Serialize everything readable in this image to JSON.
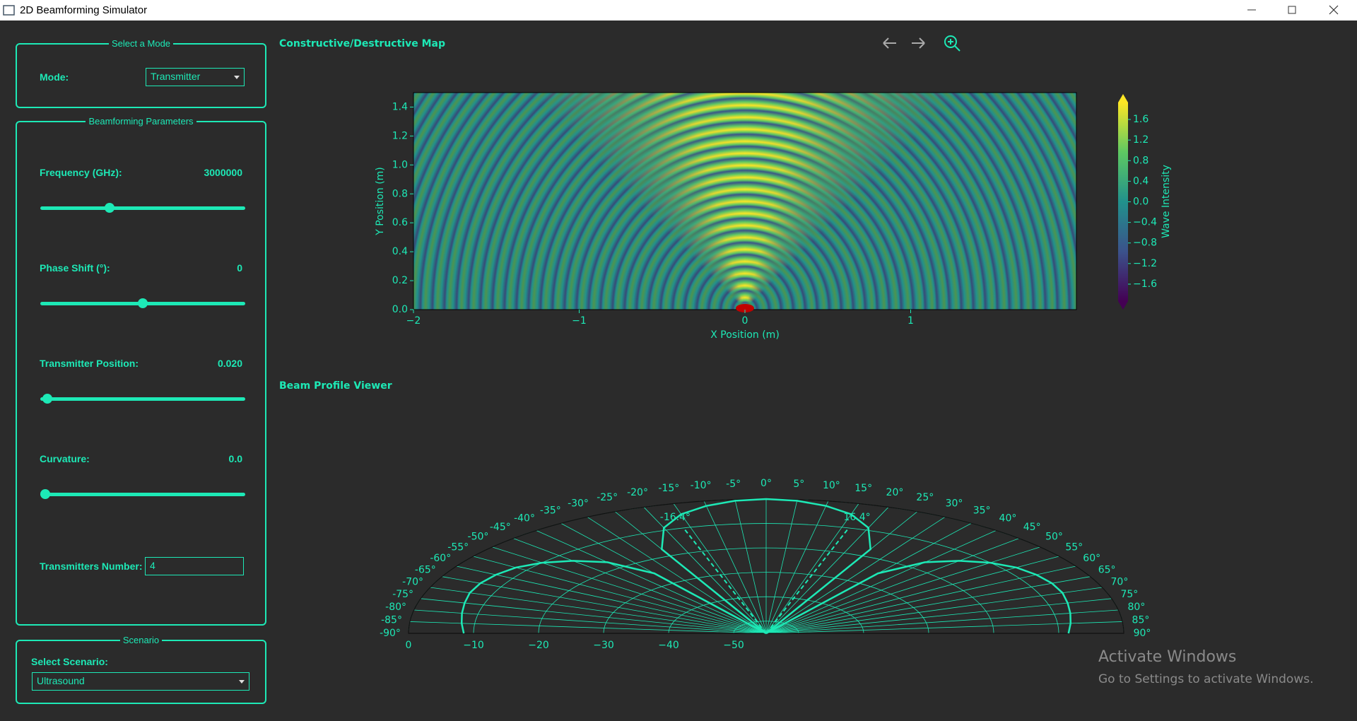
{
  "window": {
    "title": "2D Beamforming Simulator"
  },
  "mode_panel": {
    "title": "Select a Mode",
    "label": "Mode:",
    "selected": "Transmitter"
  },
  "parameters_panel": {
    "title": "Beamforming Parameters",
    "parameters": [
      {
        "label": "Frequency (GHz):",
        "value": "3000000"
      },
      {
        "label": "Phase Shift (°):",
        "value": "0"
      },
      {
        "label": "Transmitter Position:",
        "value": "0.020"
      },
      {
        "label": "Curvature:",
        "value": "0.0"
      }
    ],
    "transmitters_label": "Transmitters Number:",
    "transmitters_value": "4"
  },
  "scenario_panel": {
    "title": "Scenario",
    "label": "Select Scenario:",
    "selected": "Ultrasound"
  },
  "watermark": {
    "title": "Activate Windows",
    "subtitle": "Go to Settings to activate Windows."
  },
  "chart_data": [
    {
      "type": "heatmap",
      "title": "Constructive/Destructive Map",
      "xlabel": "X Position (m)",
      "ylabel": "Y Position (m)",
      "xlim": [
        -2,
        2
      ],
      "ylim": [
        0,
        1.5
      ],
      "xticks": [
        {
          "value": -2,
          "label": "−2"
        },
        {
          "value": -1,
          "label": "−1"
        },
        0,
        1
      ],
      "yticks": [
        {
          "value": 0,
          "label": "0.0"
        },
        0.2,
        0.4,
        0.6,
        0.8,
        {
          "value": 1,
          "label": "1.0"
        },
        1.2,
        1.4
      ],
      "colormap": "viridis",
      "colorbar": {
        "label": "Wave Intensity",
        "lim": [
          -1.93,
          1.93
        ],
        "ticks": [
          1.6,
          1.2,
          0.8,
          0.4,
          {
            "value": 0,
            "label": "0.0"
          },
          {
            "value": -0.4,
            "label": "−0.4"
          },
          {
            "value": -0.8,
            "label": "−0.8"
          },
          {
            "value": -1.2,
            "label": "−1.2"
          },
          {
            "value": -1.6,
            "label": "−1.6"
          }
        ]
      }
    },
    {
      "type": "polar",
      "title": "Beam Profile Viewer",
      "color": "#1de9b6",
      "thetalim": [
        -90,
        90
      ],
      "rlim": [
        -55,
        0
      ],
      "thetaticks": [
        {
          "value": -90,
          "label": "-90°"
        },
        {
          "value": -85,
          "label": "-85°"
        },
        {
          "value": -80,
          "label": "-80°"
        },
        {
          "value": -75,
          "label": "-75°"
        },
        {
          "value": -70,
          "label": "-70°"
        },
        {
          "value": -65,
          "label": "-65°"
        },
        {
          "value": -60,
          "label": "-60°"
        },
        {
          "value": -55,
          "label": "-55°"
        },
        {
          "value": -50,
          "label": "-50°"
        },
        {
          "value": -45,
          "label": "-45°"
        },
        {
          "value": -40,
          "label": "-40°"
        },
        {
          "value": -35,
          "label": "-35°"
        },
        {
          "value": -30,
          "label": "-30°"
        },
        {
          "value": -25,
          "label": "-25°"
        },
        {
          "value": -20,
          "label": "-20°"
        },
        {
          "value": -15,
          "label": "-15°"
        },
        {
          "value": -10,
          "label": "-10°"
        },
        {
          "value": -5,
          "label": "-5°"
        },
        {
          "value": 0,
          "label": "0°"
        },
        {
          "value": 5,
          "label": "5°"
        },
        {
          "value": 10,
          "label": "10°"
        },
        {
          "value": 15,
          "label": "15°"
        },
        {
          "value": 20,
          "label": "20°"
        },
        {
          "value": 25,
          "label": "25°"
        },
        {
          "value": 30,
          "label": "30°"
        },
        {
          "value": 35,
          "label": "35°"
        },
        {
          "value": 40,
          "label": "40°"
        },
        {
          "value": 45,
          "label": "45°"
        },
        {
          "value": 50,
          "label": "50°"
        },
        {
          "value": 55,
          "label": "55°"
        },
        {
          "value": 60,
          "label": "60°"
        },
        {
          "value": 65,
          "label": "65°"
        },
        {
          "value": 70,
          "label": "70°"
        },
        {
          "value": 75,
          "label": "75°"
        },
        {
          "value": 80,
          "label": "80°"
        },
        {
          "value": 85,
          "label": "85°"
        },
        {
          "value": 90,
          "label": "90°"
        }
      ],
      "rticks": [
        0,
        {
          "value": -10,
          "label": "−10"
        },
        {
          "value": -20,
          "label": "−20"
        },
        {
          "value": -30,
          "label": "−30"
        },
        {
          "value": -40,
          "label": "−40"
        },
        {
          "value": -50,
          "label": "−50"
        }
      ],
      "theta": [
        -90,
        -85,
        -80,
        -75,
        -70,
        -65,
        -60,
        -55,
        -50,
        -45,
        -40,
        -35,
        -30,
        -25,
        -20,
        -15,
        -10,
        -5,
        0,
        5,
        10,
        15,
        20,
        25,
        30,
        35,
        40,
        45,
        50,
        55,
        60,
        65,
        70,
        75,
        80,
        85,
        90
      ],
      "values": [
        -8.5,
        -8,
        -7.5,
        -7,
        -6.5,
        -6.5,
        -7,
        -8,
        -10,
        -13,
        -17,
        -25,
        -55,
        -17,
        -9,
        -4.5,
        -2,
        -0.5,
        0,
        -0.5,
        -2,
        -4.5,
        -9,
        -17,
        -55,
        -25,
        -17,
        -13,
        -10,
        -8,
        -7,
        -6.5,
        -6.5,
        -7,
        -7.5,
        -8,
        -8.5
      ],
      "annotations": [
        {
          "value": -16.4,
          "label": "-16.4°"
        },
        {
          "value": 16.4,
          "label": "16.4°"
        }
      ]
    }
  ]
}
